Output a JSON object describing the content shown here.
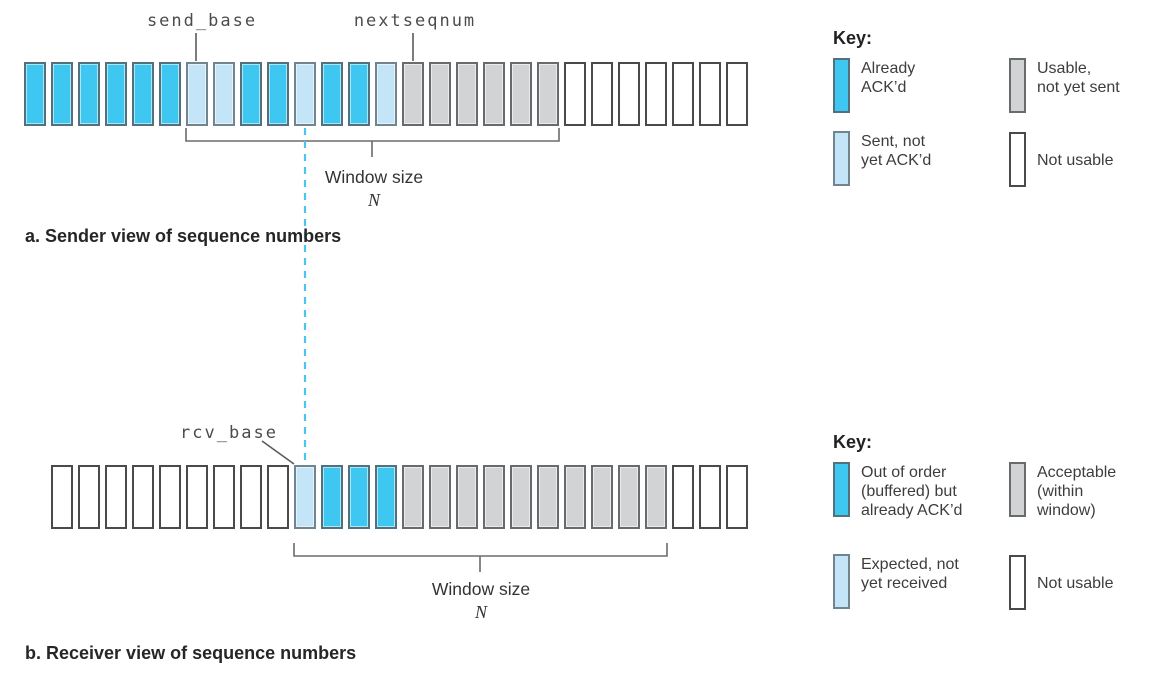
{
  "sender_section": {
    "send_base_label": "send_base",
    "nextseqnum_label": "nextseqnum",
    "window_size_label": "Window size",
    "window_size_n": "N",
    "caption": "a. Sender view of sequence numbers",
    "boxes": [
      "acked",
      "acked",
      "acked",
      "acked",
      "acked",
      "acked",
      "sent",
      "sent",
      "acked",
      "acked",
      "sent",
      "acked",
      "acked",
      "sent",
      "usable",
      "usable",
      "usable",
      "usable",
      "usable",
      "usable",
      "notusable",
      "notusable",
      "notusable",
      "notusable",
      "notusable",
      "notusable",
      "notusable"
    ]
  },
  "receiver_section": {
    "rcv_base_label": "rcv_base",
    "window_size_label": "Window size",
    "window_size_n": "N",
    "caption": "b. Receiver view of sequence numbers",
    "boxes": [
      "notusable",
      "notusable",
      "notusable",
      "notusable",
      "notusable",
      "notusable",
      "notusable",
      "notusable",
      "notusable",
      "expected",
      "buffered",
      "buffered",
      "buffered",
      "acceptable",
      "acceptable",
      "acceptable",
      "acceptable",
      "acceptable",
      "acceptable",
      "acceptable",
      "acceptable",
      "acceptable",
      "acceptable",
      "notusable",
      "notusable",
      "notusable"
    ]
  },
  "sender_key": {
    "title": "Key:",
    "items": [
      {
        "state": "acked",
        "lines": [
          "Already",
          "ACK’d"
        ]
      },
      {
        "state": "usable",
        "lines": [
          "Usable,",
          "not yet sent"
        ]
      },
      {
        "state": "sent",
        "lines": [
          "Sent, not",
          "yet ACK’d"
        ]
      },
      {
        "state": "notusable",
        "lines": [
          "Not usable"
        ]
      }
    ]
  },
  "receiver_key": {
    "title": "Key:",
    "items": [
      {
        "state": "buffered",
        "lines": [
          "Out of order",
          "(buffered) but",
          "already ACK’d"
        ]
      },
      {
        "state": "acceptable",
        "lines": [
          "Acceptable",
          "(within",
          "window)"
        ]
      },
      {
        "state": "expected",
        "lines": [
          "Expected, not",
          "yet received"
        ]
      },
      {
        "state": "notusable",
        "lines": [
          "Not usable"
        ]
      }
    ]
  },
  "colors": {
    "already_acked": "#3ec7f0",
    "sent_not_acked": "#c4e5f7",
    "usable_gray": "#d2d3d4",
    "not_usable": "#ffffff",
    "dashed_line": "#4ac4f0",
    "annotation_gray": "#6b6b6b"
  }
}
